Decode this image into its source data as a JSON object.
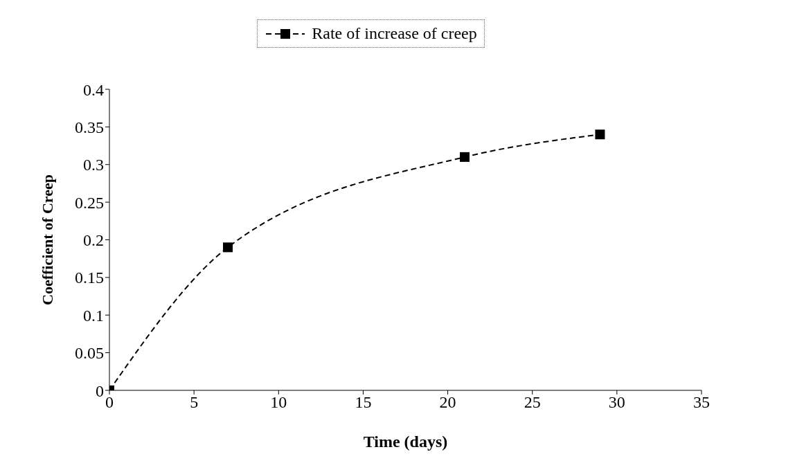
{
  "chart_data": {
    "type": "line",
    "xlabel": "Time (days)",
    "ylabel": "Coefficient of Creep",
    "x": [
      0,
      7,
      21,
      29
    ],
    "series": [
      {
        "name": "Rate of increase of creep",
        "color": "#000000",
        "values": [
          0,
          0.19,
          0.31,
          0.34
        ]
      }
    ],
    "xlim": [
      0,
      35
    ],
    "xticks": [
      0,
      5,
      10,
      15,
      20,
      25,
      30,
      35
    ],
    "ylim": [
      0,
      0.4
    ],
    "yticks": [
      0,
      0.05,
      0.1,
      0.15,
      0.2,
      0.25,
      0.3,
      0.35,
      0.4
    ],
    "grid": false,
    "legend": "top",
    "marker": "square",
    "line_style": "dashed"
  }
}
